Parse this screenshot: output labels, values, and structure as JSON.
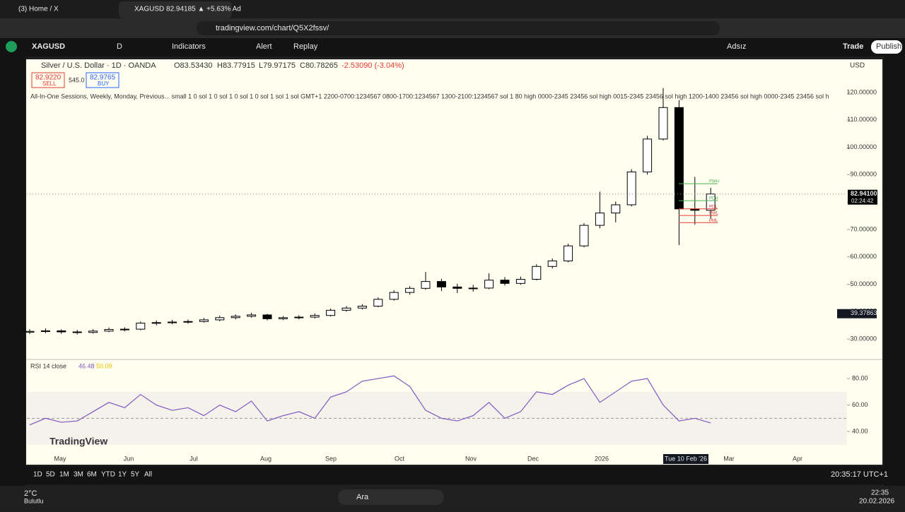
{
  "browser": {
    "tabs": [
      "(3) Home / X",
      "XAGUSD 82.94185 ▲ +5.63% Ad"
    ],
    "url": "tradingview.com/chart/Q5X2fssv/"
  },
  "toolbar": {
    "symbol": "XAGUSD",
    "interval": "D",
    "items": [
      "Indicators",
      "Alert",
      "Replay"
    ],
    "layout": "Adsız",
    "trade": "Trade",
    "publish": "Publish"
  },
  "legend": {
    "title": "Silver / U.S. Dollar · 1D · OANDA",
    "open": "O83.53430",
    "high": "H83.77915",
    "low": "L79.97175",
    "close": "C80.78265",
    "change": "-2.53090 (-3.04%)",
    "sell_price": "82.9220",
    "sell": "SELL",
    "spread": "545.0",
    "buy_price": "82.9765",
    "buy": "BUY",
    "currency": "USD",
    "indicator": "All-In-One Sessions, Weekly, Monday, Previous... small 1 0 sol 1 0 sol 1 0 sol 1 0 sol 1 sol 1 sol GMT+1 2200-0700:1234567 0800-1700:1234567 1300-2100:1234567 sol 1 80 high 0000-2345 23456 sol high 0015-2345 23456 sol high 1200-1400 23456 sol high 0000-2345 23456 sol h"
  },
  "chart_data": {
    "type": "candlestick",
    "ohlc": [
      [
        32.5,
        33.6,
        31.8,
        32.8
      ],
      [
        32.8,
        33.9,
        32.1,
        33.0
      ],
      [
        33.0,
        33.5,
        31.9,
        32.6
      ],
      [
        32.6,
        33.3,
        31.7,
        32.4
      ],
      [
        32.4,
        33.6,
        32.0,
        32.9
      ],
      [
        32.9,
        34.2,
        32.5,
        33.5
      ],
      [
        33.5,
        34.3,
        32.8,
        33.6
      ],
      [
        33.6,
        36.4,
        33.2,
        35.8
      ],
      [
        35.8,
        36.8,
        35.0,
        36.0
      ],
      [
        36.0,
        37.0,
        35.4,
        36.2
      ],
      [
        36.2,
        37.1,
        35.6,
        36.4
      ],
      [
        36.4,
        37.7,
        36.0,
        37.0
      ],
      [
        37.0,
        38.5,
        36.5,
        37.8
      ],
      [
        37.8,
        39.0,
        37.2,
        38.3
      ],
      [
        38.3,
        39.6,
        37.8,
        38.8
      ],
      [
        38.8,
        39.2,
        36.8,
        37.4
      ],
      [
        37.4,
        38.4,
        36.9,
        37.8
      ],
      [
        37.8,
        38.7,
        37.2,
        38.0
      ],
      [
        38.0,
        39.3,
        37.5,
        38.6
      ],
      [
        38.6,
        41.1,
        38.2,
        40.5
      ],
      [
        40.5,
        42.0,
        40.0,
        41.3
      ],
      [
        41.3,
        42.7,
        40.8,
        42.0
      ],
      [
        42.0,
        45.2,
        41.6,
        44.5
      ],
      [
        44.5,
        47.8,
        44.0,
        47.0
      ],
      [
        47.0,
        49.3,
        46.2,
        48.5
      ],
      [
        48.5,
        54.5,
        48.0,
        51.0
      ],
      [
        51.0,
        52.0,
        47.5,
        49.0
      ],
      [
        49.0,
        50.2,
        46.8,
        48.5
      ],
      [
        48.5,
        49.8,
        47.3,
        48.6
      ],
      [
        48.6,
        54.0,
        48.2,
        51.5
      ],
      [
        51.5,
        52.6,
        49.5,
        50.3
      ],
      [
        50.3,
        52.8,
        49.8,
        51.8
      ],
      [
        51.8,
        57.3,
        51.4,
        56.5
      ],
      [
        56.5,
        59.4,
        55.8,
        58.5
      ],
      [
        58.5,
        64.8,
        58.0,
        64.0
      ],
      [
        64.0,
        72.3,
        63.5,
        71.5
      ],
      [
        71.5,
        83.8,
        70.4,
        76.0
      ],
      [
        76.0,
        80.2,
        72.6,
        79.0
      ],
      [
        79.0,
        92.0,
        78.4,
        91.0
      ],
      [
        91.0,
        104.2,
        90.0,
        103.0
      ],
      [
        103.0,
        121.6,
        102.5,
        114.5
      ],
      [
        114.5,
        117.2,
        64.3,
        77.5
      ],
      [
        77.5,
        89.2,
        71.8,
        77.0
      ],
      [
        77.0,
        85.2,
        73.8,
        82.94
      ]
    ],
    "ylim": [
      22.8,
      132.1
    ],
    "yticks": [
      {
        "value": 30,
        "label": "30.00000"
      },
      {
        "value": 40,
        "label": "40.00000"
      },
      {
        "value": 50,
        "label": "50.00000"
      },
      {
        "value": 60,
        "label": "60.00000"
      },
      {
        "value": 70,
        "label": "70.00000"
      },
      {
        "value": 80,
        "label": "80.00000"
      },
      {
        "value": 90,
        "label": "90.00000"
      },
      {
        "value": 100,
        "label": "100.00000"
      },
      {
        "value": 110,
        "label": "110.00000"
      },
      {
        "value": 120,
        "label": "120.00000"
      }
    ],
    "last_price": {
      "value": 82.941,
      "label": "82.94100"
    },
    "countdown": "02:24:42",
    "crosshair_price": 39.37863,
    "levels": [
      {
        "name": "PWH",
        "value": 86.7,
        "color": "#4caf50"
      },
      {
        "name": "PDH",
        "value": 80.5,
        "color": "#4caf50"
      },
      {
        "name": "PDL",
        "value": 77.5,
        "color": "#e53935"
      },
      {
        "name": "PWL",
        "value": 75.1,
        "color": "#e53935"
      },
      {
        "name": "PML",
        "value": 72.5,
        "color": "#e53935"
      }
    ],
    "xticks": [
      "May",
      "Jun",
      "Jul",
      "Aug",
      "Sep",
      "Oct",
      "Nov",
      "Dec",
      "2026",
      "Mar",
      "Apr"
    ],
    "crosshair_date": "Tue 10 Feb '26",
    "up_color": "#ffffff",
    "down_color": "#000000",
    "rsi": {
      "title": "RSI 14 close",
      "value": "46.48",
      "ma": "50.09",
      "color": "#7e57c2",
      "ylim": [
        29.9,
        93.9
      ],
      "yticks": [
        {
          "value": 40,
          "label": "40.00"
        },
        {
          "value": 60,
          "label": "60.00"
        },
        {
          "value": 80,
          "label": "80.00"
        }
      ],
      "band": [
        30,
        70
      ],
      "midline": 50,
      "values": [
        45,
        50,
        47,
        48,
        55,
        62,
        58,
        68,
        60,
        56,
        58,
        52,
        60,
        55,
        63,
        48,
        52,
        55,
        50,
        66,
        70,
        78,
        80,
        82,
        74,
        56,
        50,
        48,
        52,
        62,
        50,
        55,
        70,
        68,
        75,
        80,
        62,
        70,
        78,
        80,
        60,
        48,
        50,
        46.48
      ]
    }
  },
  "bottom": {
    "ranges": [
      "1D",
      "5D",
      "1M",
      "3M",
      "6M",
      "YTD",
      "1Y",
      "5Y",
      "All"
    ],
    "clock": "20:35:17 UTC+1",
    "brand": "TradingView"
  },
  "taskbar": {
    "weather_temp": "2°C",
    "weather": "Bulutlu",
    "search": "Ara",
    "time": "22:35",
    "date": "20.02.2026"
  }
}
